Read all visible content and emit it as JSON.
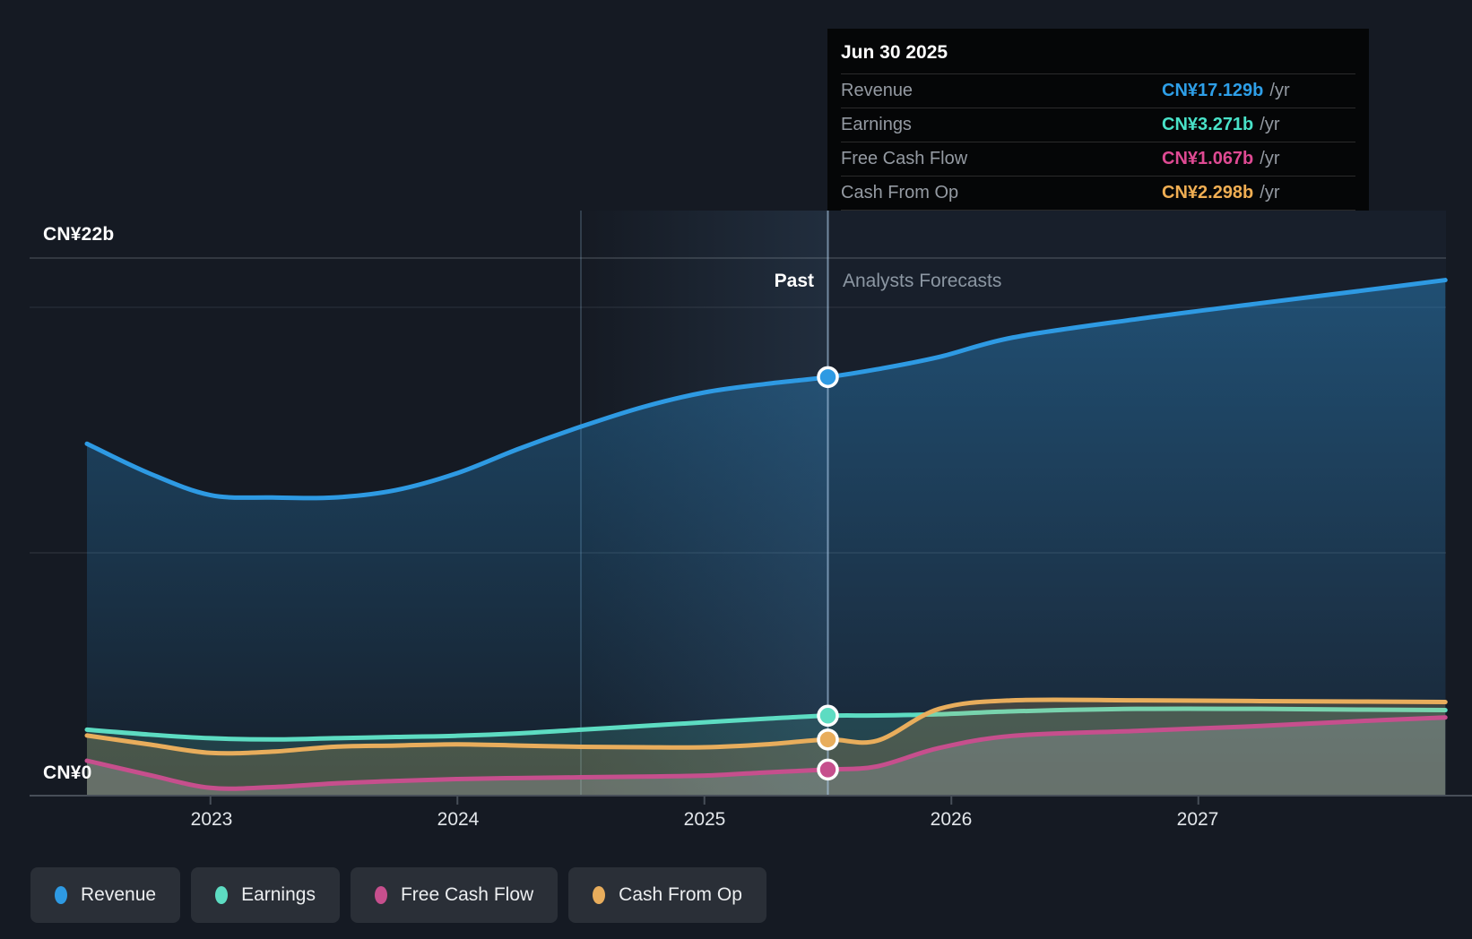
{
  "tooltip": {
    "date": "Jun 30 2025",
    "rows": [
      {
        "label": "Revenue",
        "value": "CN¥17.129b",
        "suffix": "/yr",
        "color": "#2e9fe8"
      },
      {
        "label": "Earnings",
        "value": "CN¥3.271b",
        "suffix": "/yr",
        "color": "#49e2c8"
      },
      {
        "label": "Free Cash Flow",
        "value": "CN¥1.067b",
        "suffix": "/yr",
        "color": "#df4a93"
      },
      {
        "label": "Cash From Op",
        "value": "CN¥2.298b",
        "suffix": "/yr",
        "color": "#f0ae53"
      }
    ]
  },
  "axis": {
    "y_top_label": "CN¥22b",
    "y_bottom_label": "CN¥0",
    "x_labels": [
      "2023",
      "2024",
      "2025",
      "2026",
      "2027"
    ]
  },
  "bands": {
    "past_label": "Past",
    "forecast_label": "Analysts Forecasts"
  },
  "legend": [
    {
      "label": "Revenue",
      "color": "#2e9ae3"
    },
    {
      "label": "Earnings",
      "color": "#5ddcc2"
    },
    {
      "label": "Free Cash Flow",
      "color": "#c64f8d"
    },
    {
      "label": "Cash From Op",
      "color": "#e8ad5c"
    }
  ],
  "chart_data": {
    "type": "area",
    "title": "Past and forecast financials (CN¥ billions per year)",
    "x_unit": "year",
    "x": [
      2022.5,
      2022.75,
      2023,
      2023.25,
      2023.5,
      2023.75,
      2024,
      2024.25,
      2024.5,
      2024.75,
      2025,
      2025.25,
      2025.5,
      2025.7,
      2025.95,
      2026.25,
      2026.75,
      2027.25,
      2027.65,
      2028
    ],
    "series": [
      {
        "name": "Revenue",
        "color": "#2e9ae3",
        "values": [
          14.4,
          13.2,
          12.3,
          12.2,
          12.2,
          12.5,
          13.2,
          14.2,
          15.1,
          15.9,
          16.5,
          16.85,
          17.129,
          17.45,
          17.95,
          18.75,
          19.5,
          20.15,
          20.65,
          21.1
        ]
      },
      {
        "name": "Earnings",
        "color": "#5ddcc2",
        "values": [
          2.7,
          2.5,
          2.35,
          2.3,
          2.35,
          2.4,
          2.45,
          2.55,
          2.7,
          2.85,
          3.0,
          3.15,
          3.271,
          3.28,
          3.33,
          3.45,
          3.55,
          3.55,
          3.52,
          3.5
        ]
      },
      {
        "name": "Cash From Op",
        "color": "#e8ad5c",
        "values": [
          2.46,
          2.1,
          1.75,
          1.8,
          2.0,
          2.05,
          2.1,
          2.05,
          2.0,
          1.98,
          1.98,
          2.1,
          2.298,
          2.25,
          3.55,
          3.9,
          3.9,
          3.87,
          3.85,
          3.83
        ]
      },
      {
        "name": "Free Cash Flow",
        "color": "#c64f8d",
        "values": [
          1.43,
          0.85,
          0.32,
          0.35,
          0.5,
          0.6,
          0.68,
          0.72,
          0.75,
          0.78,
          0.82,
          0.95,
          1.067,
          1.2,
          1.95,
          2.45,
          2.65,
          2.85,
          3.05,
          3.2
        ]
      }
    ],
    "x_ticks": [
      2023,
      2024,
      2025,
      2026,
      2027
    ],
    "y_axis": {
      "min": 0,
      "max": 22,
      "top_label": "CN¥22b",
      "bottom_label": "CN¥0",
      "gridlines": true
    },
    "divider_x": 2025.5,
    "highlight_band": [
      2024.5,
      2025.5
    ],
    "marker_x": 2025.5,
    "marker_date": "Jun 30 2025",
    "marker_values": {
      "Revenue": 17.129,
      "Earnings": 3.271,
      "Free Cash Flow": 1.067,
      "Cash From Op": 2.298
    },
    "legend_position": "bottom-left"
  }
}
